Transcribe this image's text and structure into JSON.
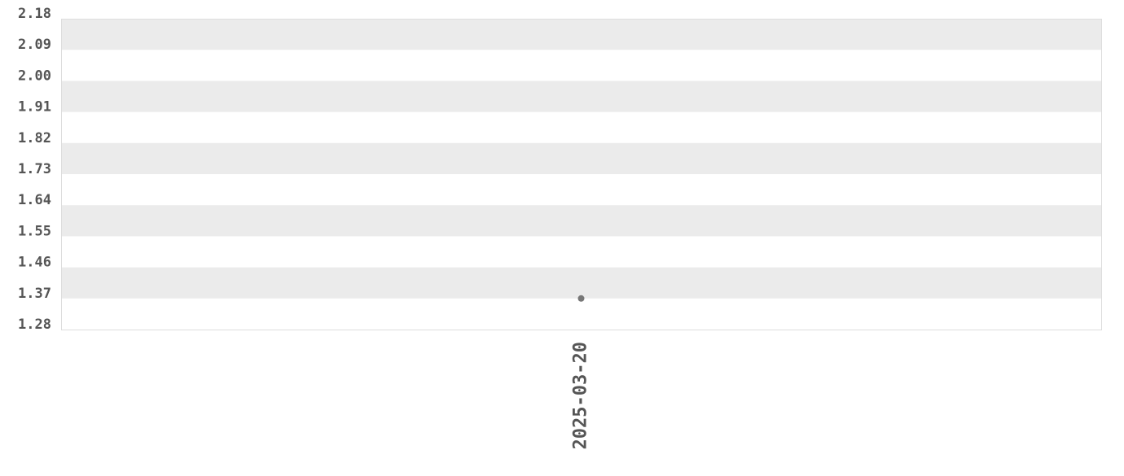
{
  "chart_data": {
    "type": "scatter",
    "title": "",
    "xlabel": "",
    "ylabel": "",
    "categories": [
      "2025-03-20"
    ],
    "series": [
      {
        "values": [
          1.37
        ]
      }
    ],
    "ylim": [
      1.28,
      2.18
    ],
    "yticks": [
      "2.18",
      "2.09",
      "2.00",
      "1.91",
      "1.82",
      "1.73",
      "1.64",
      "1.55",
      "1.46",
      "1.37",
      "1.28"
    ],
    "grid": "alternating horizontal bands",
    "legend": "none",
    "colors": {
      "band": "#ebebeb",
      "point": "#777777",
      "text": "#555555",
      "border": "#dddddd"
    }
  }
}
